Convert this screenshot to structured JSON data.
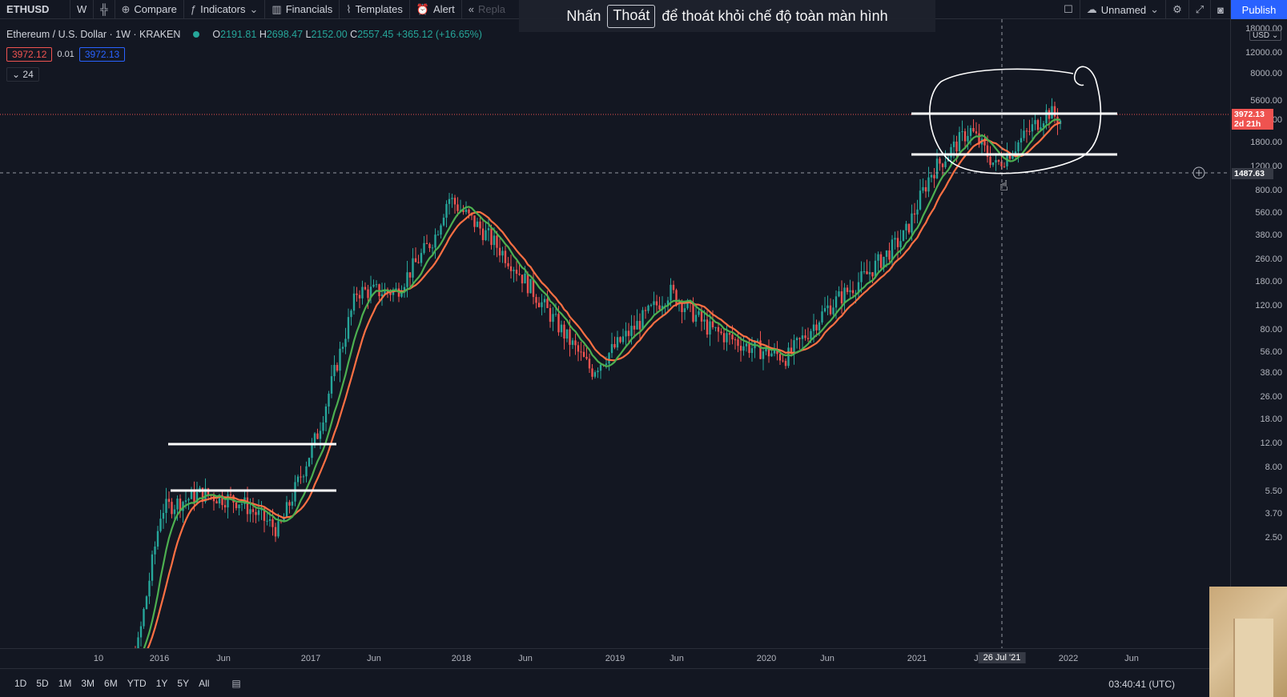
{
  "toolbar": {
    "symbol": "ETHUSD",
    "interval": "W",
    "compare": "Compare",
    "indicators": "Indicators",
    "financials": "Financials",
    "templates": "Templates",
    "alert": "Alert",
    "replay": "Repla",
    "layout_name": "Unnamed",
    "publish": "Publish"
  },
  "fullscreen_notice": {
    "before": "Nhấn",
    "key": "Thoát",
    "after": "để thoát khỏi chế độ toàn màn hình"
  },
  "legend": {
    "title": "Ethereum / U.S. Dollar · 1W · KRAKEN",
    "open_label": "O",
    "open": "2191.81",
    "high_label": "H",
    "high": "2698.47",
    "low_label": "L",
    "low": "2152.00",
    "close_label": "C",
    "close": "2557.45",
    "change": "+365.12 (+16.65%)",
    "sell_price": "3972.12",
    "spread": "0.01",
    "buy_price": "3972.13",
    "collapsed_count": "24"
  },
  "price_scale": {
    "currency": "USD",
    "ticks": [
      "18000.00",
      "12000.00",
      "8000.00",
      "5600.00",
      "2600.00",
      "1800.00",
      "1200.00",
      "800.00",
      "560.00",
      "380.00",
      "260.00",
      "180.00",
      "120.00",
      "80.00",
      "56.00",
      "38.00",
      "26.00",
      "18.00",
      "12.00",
      "8.00",
      "5.50",
      "3.70",
      "2.50"
    ],
    "last_price": "3972.13",
    "countdown": "2d 21h",
    "crosshair_price": "1487.63"
  },
  "time_axis": {
    "ticks": [
      "10",
      "2016",
      "Jun",
      "2017",
      "Jun",
      "2018",
      "Jun",
      "2019",
      "Jun",
      "2020",
      "Jun",
      "2021",
      "Jun",
      "2022",
      "Jun"
    ],
    "crosshair_date": "26 Jul '21"
  },
  "bottom_bar": {
    "ranges": [
      "1D",
      "5D",
      "1M",
      "3M",
      "6M",
      "YTD",
      "1Y",
      "5Y",
      "All"
    ],
    "clock": "03:40:41 (UTC)"
  },
  "colors": {
    "background": "#131722",
    "up": "#26a69a",
    "down": "#ef5350",
    "ma_fast": "#4caf50",
    "ma_slow": "#ff7043",
    "accent": "#2962ff"
  },
  "chart_data": {
    "type": "candlestick",
    "symbol": "ETHUSD",
    "interval": "1W",
    "exchange": "KRAKEN",
    "y_scale": "log",
    "series": [
      {
        "x": "2015-10",
        "y": 1.0
      },
      {
        "x": "2016-01",
        "y": 1.1
      },
      {
        "x": "2016-03",
        "y": 11
      },
      {
        "x": "2016-06",
        "y": 14
      },
      {
        "x": "2016-09",
        "y": 12.5
      },
      {
        "x": "2016-12",
        "y": 8
      },
      {
        "x": "2017-03",
        "y": 35
      },
      {
        "x": "2017-06",
        "y": 300
      },
      {
        "x": "2017-09",
        "y": 300
      },
      {
        "x": "2017-12",
        "y": 700
      },
      {
        "x": "2018-01",
        "y": 1250
      },
      {
        "x": "2018-04",
        "y": 700
      },
      {
        "x": "2018-06",
        "y": 450
      },
      {
        "x": "2018-09",
        "y": 200
      },
      {
        "x": "2018-12",
        "y": 90
      },
      {
        "x": "2019-06",
        "y": 300
      },
      {
        "x": "2019-09",
        "y": 170
      },
      {
        "x": "2019-12",
        "y": 130
      },
      {
        "x": "2020-03",
        "y": 110
      },
      {
        "x": "2020-06",
        "y": 230
      },
      {
        "x": "2020-09",
        "y": 380
      },
      {
        "x": "2020-12",
        "y": 700
      },
      {
        "x": "2021-02",
        "y": 1800
      },
      {
        "x": "2021-05",
        "y": 3500
      },
      {
        "x": "2021-07",
        "y": 2000
      },
      {
        "x": "2021-11",
        "y": 4600
      },
      {
        "x": "2021-12",
        "y": 3972
      }
    ]
  }
}
